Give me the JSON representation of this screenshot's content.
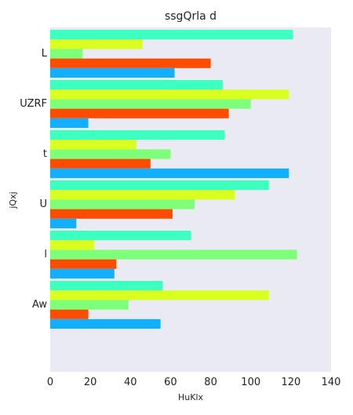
{
  "chart_data": {
    "type": "bar",
    "orientation": "horizontal",
    "title": "ssgQrla d",
    "xlabel": "HuKlx",
    "ylabel": "jQxj",
    "categories": [
      "L",
      "UZRF",
      "t",
      "U",
      "l",
      "Aw"
    ],
    "xlim": [
      0,
      140
    ],
    "xticks": [
      "0",
      "20",
      "40",
      "60",
      "80",
      "100",
      "120",
      "140"
    ],
    "grid": false,
    "legend": "none",
    "background": "#eaeaf2",
    "series": [
      {
        "color": "#3dffc0",
        "values": [
          121,
          86,
          87,
          109,
          70,
          56
        ]
      },
      {
        "color": "#d8ff1f",
        "values": [
          46,
          119,
          43,
          92,
          22,
          109
        ]
      },
      {
        "color": "#7dff7a",
        "values": [
          16,
          100,
          60,
          72,
          123,
          39
        ]
      },
      {
        "color": "#ff4d00",
        "values": [
          80,
          89,
          50,
          61,
          33,
          19
        ]
      },
      {
        "color": "#10b0ff",
        "values": [
          62,
          19,
          119,
          13,
          32,
          55
        ]
      }
    ]
  }
}
